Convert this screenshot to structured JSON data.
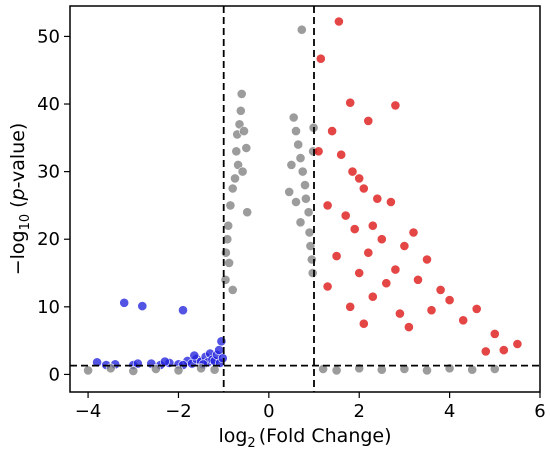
{
  "chart_data": {
    "type": "scatter",
    "title": "",
    "xlabel": {
      "prefix": "log",
      "sub": "2",
      "rest": "(Fold Change)"
    },
    "ylabel": {
      "prefix": "−log",
      "sub": "10",
      "open": " (",
      "italic": "p",
      "rest": "-value)"
    },
    "xlim": [
      -4.4,
      6.0
    ],
    "ylim": [
      -2.6,
      54.5
    ],
    "xticks": [
      -4,
      -2,
      0,
      2,
      4,
      6
    ],
    "yticks": [
      0,
      10,
      20,
      30,
      40,
      50
    ],
    "grid": false,
    "legend": "none",
    "thresholds": {
      "log2fc": [
        -1,
        1
      ],
      "neg_log10_p": 1.3
    },
    "colors": {
      "down": "#2222dd",
      "ns": "#808080",
      "up": "#dd1111",
      "outline": "#ffffff",
      "threshold_line": "#000000"
    },
    "series": [
      {
        "name": "down",
        "points": [
          [
            -3.2,
            10.6
          ],
          [
            -2.8,
            10.1
          ],
          [
            -1.9,
            9.5
          ],
          [
            -3.8,
            1.8
          ],
          [
            -3.4,
            1.5
          ],
          [
            -3.0,
            1.4
          ],
          [
            -2.6,
            1.6
          ],
          [
            -2.4,
            1.4
          ],
          [
            -2.2,
            1.7
          ],
          [
            -2.0,
            1.5
          ],
          [
            -1.8,
            2.0
          ],
          [
            -1.7,
            1.6
          ],
          [
            -1.6,
            2.3
          ],
          [
            -1.5,
            1.9
          ],
          [
            -1.4,
            2.6
          ],
          [
            -1.35,
            1.8
          ],
          [
            -1.3,
            3.1
          ],
          [
            -1.25,
            2.2
          ],
          [
            -1.2,
            2.0
          ],
          [
            -1.15,
            2.9
          ],
          [
            -1.1,
            3.6
          ],
          [
            -1.08,
            1.7
          ],
          [
            -1.05,
            4.9
          ],
          [
            -1.02,
            2.4
          ],
          [
            -3.6,
            1.4
          ],
          [
            -2.9,
            1.6
          ],
          [
            -2.3,
            1.9
          ],
          [
            -1.9,
            1.4
          ],
          [
            -1.65,
            2.8
          ],
          [
            -1.45,
            1.5
          ]
        ]
      },
      {
        "name": "ns",
        "points": [
          [
            0.73,
            51.0
          ],
          [
            -0.6,
            41.5
          ],
          [
            -0.62,
            39.0
          ],
          [
            -0.65,
            37.0
          ],
          [
            -0.7,
            35.5
          ],
          [
            -0.72,
            33.0
          ],
          [
            -0.68,
            31.0
          ],
          [
            -0.75,
            29.0
          ],
          [
            -0.8,
            27.5
          ],
          [
            -0.85,
            25.0
          ],
          [
            -0.9,
            22.0
          ],
          [
            -0.92,
            20.0
          ],
          [
            -0.95,
            18.0
          ],
          [
            -0.88,
            16.5
          ],
          [
            -0.96,
            14.0
          ],
          [
            -0.8,
            12.5
          ],
          [
            -0.55,
            36.0
          ],
          [
            -0.5,
            33.5
          ],
          [
            -0.58,
            30.0
          ],
          [
            -0.48,
            24.0
          ],
          [
            0.55,
            38.0
          ],
          [
            0.6,
            36.0
          ],
          [
            0.65,
            34.0
          ],
          [
            0.7,
            32.0
          ],
          [
            0.75,
            30.0
          ],
          [
            0.8,
            28.0
          ],
          [
            0.82,
            26.0
          ],
          [
            0.88,
            24.0
          ],
          [
            0.9,
            21.0
          ],
          [
            0.92,
            19.0
          ],
          [
            0.95,
            17.0
          ],
          [
            0.97,
            15.0
          ],
          [
            0.5,
            31.0
          ],
          [
            0.45,
            27.0
          ],
          [
            0.6,
            25.5
          ],
          [
            0.7,
            22.5
          ],
          [
            0.98,
            33.0
          ],
          [
            0.99,
            36.5
          ],
          [
            -4.0,
            0.6
          ],
          [
            -3.5,
            0.9
          ],
          [
            -3.0,
            0.5
          ],
          [
            -2.5,
            0.8
          ],
          [
            -2.0,
            0.6
          ],
          [
            -1.5,
            0.9
          ],
          [
            -1.2,
            0.7
          ],
          [
            1.2,
            0.8
          ],
          [
            1.5,
            0.6
          ],
          [
            2.0,
            0.9
          ],
          [
            2.5,
            0.7
          ],
          [
            3.0,
            0.8
          ],
          [
            3.5,
            0.6
          ],
          [
            4.0,
            0.9
          ],
          [
            4.5,
            0.7
          ],
          [
            5.0,
            0.8
          ]
        ]
      },
      {
        "name": "up",
        "points": [
          [
            1.55,
            52.2
          ],
          [
            1.15,
            46.7
          ],
          [
            1.8,
            40.2
          ],
          [
            2.8,
            39.8
          ],
          [
            2.2,
            37.5
          ],
          [
            1.4,
            36.0
          ],
          [
            1.1,
            33.0
          ],
          [
            1.6,
            32.5
          ],
          [
            1.85,
            30.0
          ],
          [
            2.0,
            29.0
          ],
          [
            2.1,
            27.5
          ],
          [
            1.3,
            25.0
          ],
          [
            2.4,
            26.0
          ],
          [
            2.7,
            25.5
          ],
          [
            1.7,
            23.5
          ],
          [
            2.3,
            22.0
          ],
          [
            3.2,
            21.0
          ],
          [
            1.9,
            21.5
          ],
          [
            2.5,
            20.0
          ],
          [
            3.0,
            19.0
          ],
          [
            2.2,
            18.0
          ],
          [
            1.5,
            17.5
          ],
          [
            3.5,
            17.0
          ],
          [
            2.8,
            15.5
          ],
          [
            2.0,
            15.0
          ],
          [
            3.3,
            14.0
          ],
          [
            1.3,
            13.0
          ],
          [
            2.6,
            13.5
          ],
          [
            3.8,
            12.5
          ],
          [
            4.0,
            11.0
          ],
          [
            2.3,
            11.5
          ],
          [
            4.6,
            9.7
          ],
          [
            3.6,
            9.5
          ],
          [
            1.8,
            10.0
          ],
          [
            2.9,
            9.0
          ],
          [
            4.3,
            8.0
          ],
          [
            5.0,
            6.0
          ],
          [
            5.5,
            4.5
          ],
          [
            5.2,
            3.6
          ],
          [
            4.8,
            3.4
          ],
          [
            3.1,
            7.0
          ],
          [
            2.1,
            7.5
          ]
        ]
      }
    ]
  }
}
